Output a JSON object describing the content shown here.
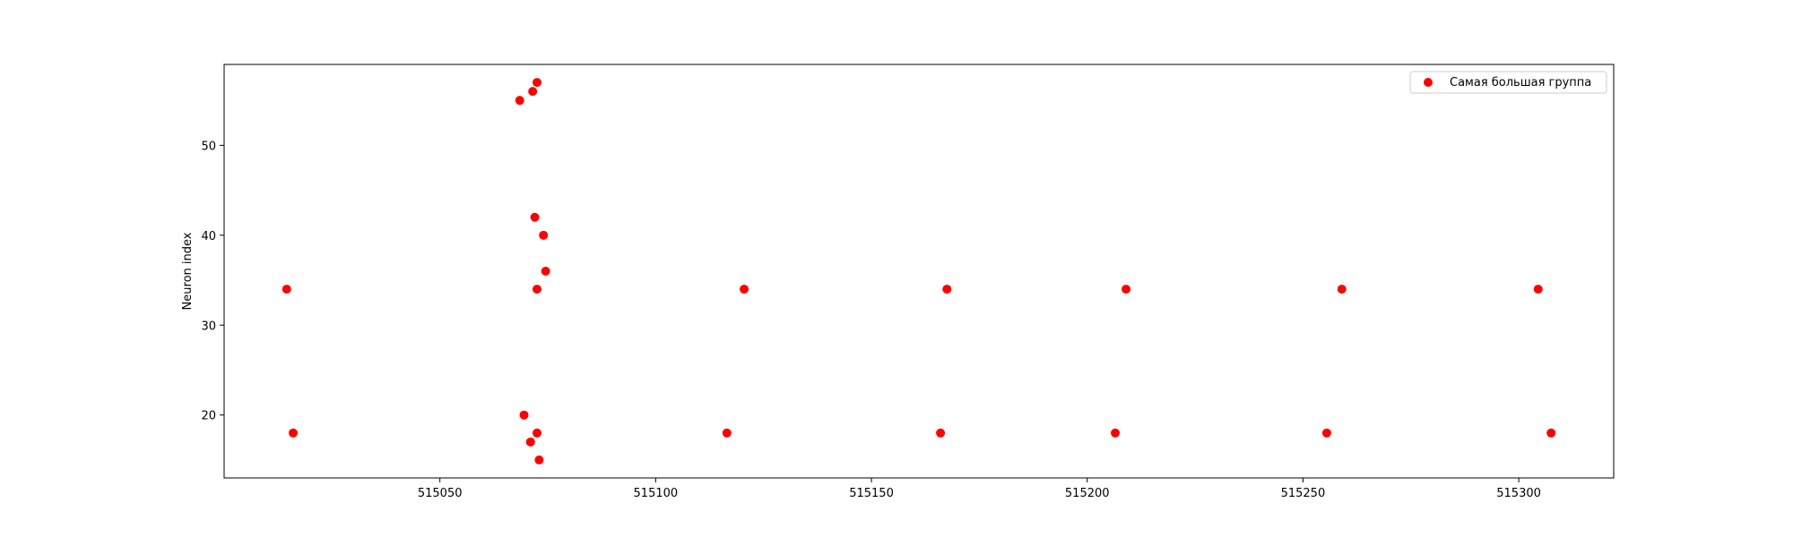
{
  "chart_data": {
    "type": "scatter",
    "title": "",
    "xlabel": "",
    "ylabel": "Neuron index",
    "xlim": [
      515000,
      515322
    ],
    "ylim": [
      13,
      59
    ],
    "xticks": [
      515050,
      515100,
      515150,
      515200,
      515250,
      515300
    ],
    "yticks": [
      20,
      30,
      40,
      50
    ],
    "grid": false,
    "legend": {
      "placement": "top-right"
    },
    "series": [
      {
        "name": "Самая большая группа",
        "color": "#ff0000",
        "marker": "circle",
        "points": [
          {
            "x": 515014.5,
            "y": 34
          },
          {
            "x": 515016,
            "y": 18
          },
          {
            "x": 515068.5,
            "y": 55
          },
          {
            "x": 515071.5,
            "y": 56
          },
          {
            "x": 515072.5,
            "y": 57
          },
          {
            "x": 515072,
            "y": 42
          },
          {
            "x": 515074,
            "y": 40
          },
          {
            "x": 515074.5,
            "y": 36
          },
          {
            "x": 515072.5,
            "y": 34
          },
          {
            "x": 515069.5,
            "y": 20
          },
          {
            "x": 515072.5,
            "y": 18
          },
          {
            "x": 515071,
            "y": 17
          },
          {
            "x": 515073,
            "y": 15
          },
          {
            "x": 515116.5,
            "y": 18
          },
          {
            "x": 515120.5,
            "y": 34
          },
          {
            "x": 515166,
            "y": 18
          },
          {
            "x": 515167.5,
            "y": 34
          },
          {
            "x": 515206.5,
            "y": 18
          },
          {
            "x": 515209,
            "y": 34
          },
          {
            "x": 515255.5,
            "y": 18
          },
          {
            "x": 515259,
            "y": 34
          },
          {
            "x": 515304.5,
            "y": 34
          },
          {
            "x": 515307.5,
            "y": 18
          }
        ]
      }
    ]
  }
}
